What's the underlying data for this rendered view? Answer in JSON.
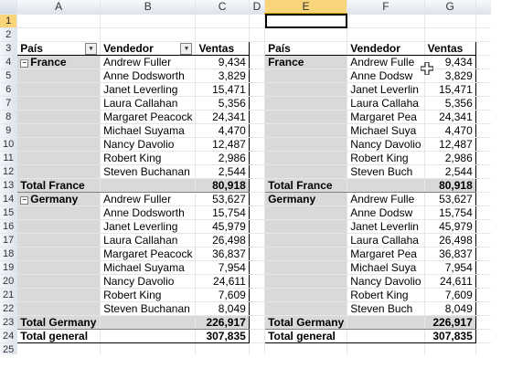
{
  "columns": [
    "A",
    "B",
    "C",
    "D",
    "E",
    "F",
    "G"
  ],
  "selected_column": "E",
  "selected_row": 1,
  "pivot1": {
    "header": {
      "pais": "País",
      "vendedor": "Vendedor",
      "ventas": "Ventas"
    },
    "groups": [
      {
        "name": "France",
        "rows": [
          [
            "Andrew Fuller",
            "9,434"
          ],
          [
            "Anne Dodsworth",
            "3,829"
          ],
          [
            "Janet Leverling",
            "15,471"
          ],
          [
            "Laura Callahan",
            "5,356"
          ],
          [
            "Margaret Peacock",
            "24,341"
          ],
          [
            "Michael Suyama",
            "4,470"
          ],
          [
            "Nancy Davolio",
            "12,487"
          ],
          [
            "Robert King",
            "2,986"
          ],
          [
            "Steven Buchanan",
            "2,544"
          ]
        ],
        "total_label": "Total France",
        "total": "80,918"
      },
      {
        "name": "Germany",
        "rows": [
          [
            "Andrew Fuller",
            "53,627"
          ],
          [
            "Anne Dodsworth",
            "15,754"
          ],
          [
            "Janet Leverling",
            "45,979"
          ],
          [
            "Laura Callahan",
            "26,498"
          ],
          [
            "Margaret Peacock",
            "36,837"
          ],
          [
            "Michael Suyama",
            "7,954"
          ],
          [
            "Nancy Davolio",
            "24,611"
          ],
          [
            "Robert King",
            "7,609"
          ],
          [
            "Steven Buchanan",
            "8,049"
          ]
        ],
        "total_label": "Total Germany",
        "total": "226,917"
      }
    ],
    "grand_total_label": "Total general",
    "grand_total": "307,835"
  },
  "pivot2": {
    "header": {
      "pais": "País",
      "vendedor": "Vendedor",
      "ventas": "Ventas"
    },
    "groups": [
      {
        "name": "France",
        "rows": [
          [
            "Andrew Fulle",
            "9,434"
          ],
          [
            "Anne Dodsw",
            "3,829"
          ],
          [
            "Janet Leverlin",
            "15,471"
          ],
          [
            "Laura Callaha",
            "5,356"
          ],
          [
            "Margaret Pea",
            "24,341"
          ],
          [
            "Michael Suya",
            "4,470"
          ],
          [
            "Nancy Davolio",
            "12,487"
          ],
          [
            "Robert King",
            "2,986"
          ],
          [
            "Steven Buch",
            "2,544"
          ]
        ],
        "total_label": "Total France",
        "total": "80,918"
      },
      {
        "name": "Germany",
        "rows": [
          [
            "Andrew Fulle",
            "53,627"
          ],
          [
            "Anne Dodsw",
            "15,754"
          ],
          [
            "Janet Leverlin",
            "45,979"
          ],
          [
            "Laura Callaha",
            "26,498"
          ],
          [
            "Margaret Pea",
            "36,837"
          ],
          [
            "Michael Suya",
            "7,954"
          ],
          [
            "Nancy Davolio",
            "24,611"
          ],
          [
            "Robert King",
            "7,609"
          ],
          [
            "Steven Buch",
            "8,049"
          ]
        ],
        "total_label": "Total Germany",
        "total": "226,917"
      }
    ],
    "grand_total_label": "Total general",
    "grand_total": "307,835"
  },
  "icons": {
    "filter": "filter-dropdown-icon",
    "collapse": "collapse-minus-icon",
    "cursor": "cell-select-cursor-icon"
  }
}
